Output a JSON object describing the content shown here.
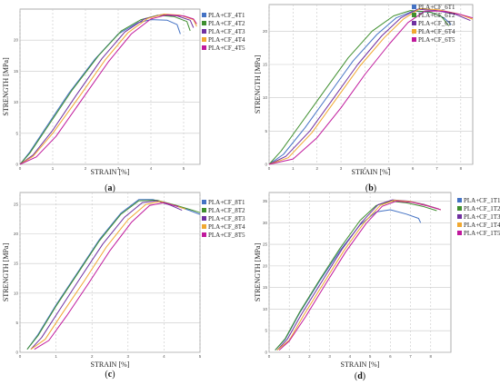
{
  "chart_data": [
    {
      "type": "line",
      "caption": "(a)",
      "xlabel": "STRAIN [%]",
      "ylabel": "STRENGTH [MPa]",
      "xlim": [
        0,
        5.5
      ],
      "ylim": [
        0,
        25
      ],
      "xticks": [
        "0",
        "1",
        "2",
        "3",
        "4",
        "5"
      ],
      "yticks": [
        "0",
        "5",
        "10",
        "15",
        "20"
      ],
      "series": [
        {
          "name": "PLA+CF_4T1",
          "color": "#4472c4",
          "x": [
            0,
            0.3,
            0.8,
            1.5,
            2.3,
            3.0,
            3.6,
            4.0,
            4.5,
            4.8,
            4.9
          ],
          "y": [
            0,
            2.0,
            6.0,
            11.5,
            17.0,
            21.0,
            22.8,
            23.3,
            23.2,
            22.5,
            21.0
          ]
        },
        {
          "name": "PLA+CF_4T2",
          "color": "#3f8f2f",
          "x": [
            0,
            0.3,
            0.9,
            1.6,
            2.4,
            3.1,
            3.7,
            4.2,
            4.7,
            5.1,
            5.2
          ],
          "y": [
            0,
            1.8,
            6.5,
            12.0,
            17.5,
            21.5,
            23.3,
            24.0,
            23.8,
            23.0,
            21.5
          ]
        },
        {
          "name": "PLA+CF_4T3",
          "color": "#7030a0",
          "x": [
            0,
            0.4,
            1.0,
            1.7,
            2.5,
            3.2,
            3.8,
            4.3,
            4.8,
            5.2,
            5.3
          ],
          "y": [
            0,
            1.5,
            5.5,
            11.0,
            17.0,
            21.3,
            23.4,
            24.1,
            23.9,
            23.2,
            22.0
          ]
        },
        {
          "name": "PLA+CF_4T4",
          "color": "#f0a830",
          "x": [
            0,
            0.4,
            1.0,
            1.8,
            2.6,
            3.3,
            3.9,
            4.4,
            4.9,
            5.3,
            5.4
          ],
          "y": [
            0,
            1.3,
            5.0,
            10.8,
            16.8,
            21.2,
            23.5,
            24.2,
            24.0,
            23.3,
            22.2
          ]
        },
        {
          "name": "PLA+CF_4T5",
          "color": "#c0189c",
          "x": [
            0,
            0.5,
            1.1,
            1.9,
            2.7,
            3.4,
            4.0,
            4.5,
            5.0,
            5.3,
            5.4
          ],
          "y": [
            0,
            1.2,
            4.5,
            10.5,
            16.5,
            21.0,
            23.4,
            24.1,
            23.9,
            23.4,
            22.6
          ]
        }
      ]
    },
    {
      "type": "line",
      "caption": "(b)",
      "xlabel": "STRAIN [%]",
      "ylabel": "STRENGTH [MPa]",
      "xlim": [
        0,
        8.5
      ],
      "ylim": [
        0,
        24
      ],
      "xticks": [
        "0",
        "1",
        "2",
        "3",
        "4",
        "5",
        "6",
        "7",
        "8"
      ],
      "yticks": [
        "0",
        "5",
        "10",
        "15",
        "20"
      ],
      "series": [
        {
          "name": "PLA+CF_6T1",
          "color": "#4472c4",
          "x": [
            0,
            0.6,
            1.5,
            2.5,
            3.5,
            4.5,
            5.3,
            6.0,
            6.8,
            7.3,
            7.6
          ],
          "y": [
            0,
            1.5,
            5.5,
            10.5,
            15.5,
            19.5,
            22.0,
            23.0,
            22.8,
            22.0,
            21.0
          ]
        },
        {
          "name": "PLA+CF_6T2",
          "color": "#3f8f2f",
          "x": [
            0,
            0.5,
            1.3,
            2.3,
            3.3,
            4.3,
            5.2,
            5.9,
            6.7,
            7.2,
            7.5
          ],
          "y": [
            0,
            2.0,
            6.0,
            11.0,
            16.0,
            20.0,
            22.3,
            23.1,
            22.9,
            22.2,
            20.8
          ]
        },
        {
          "name": "PLA+CF_6T3",
          "color": "#7030a0",
          "x": [
            0,
            0.7,
            1.7,
            2.7,
            3.7,
            4.7,
            5.5,
            6.2,
            7.0,
            7.8,
            8.4
          ],
          "y": [
            0,
            1.2,
            5.0,
            10.0,
            15.0,
            19.3,
            22.0,
            23.3,
            23.1,
            22.5,
            21.6
          ]
        },
        {
          "name": "PLA+CF_6T4",
          "color": "#f0a830",
          "x": [
            0,
            0.8,
            1.8,
            2.8,
            3.8,
            4.8,
            5.6,
            6.3,
            7.1,
            7.9,
            8.5
          ],
          "y": [
            0,
            1.0,
            4.8,
            9.8,
            14.8,
            19.0,
            21.8,
            23.4,
            23.2,
            22.6,
            21.8
          ]
        },
        {
          "name": "PLA+CF_6T5",
          "color": "#c0189c",
          "x": [
            0,
            1.0,
            2.0,
            3.0,
            4.0,
            5.0,
            5.8,
            6.5,
            7.3,
            8.0,
            8.5
          ],
          "y": [
            0,
            0.8,
            4.0,
            8.5,
            13.5,
            18.0,
            21.3,
            23.0,
            23.0,
            22.5,
            22.0
          ]
        }
      ]
    },
    {
      "type": "line",
      "caption": "(c)",
      "xlabel": "STRAIN [%]",
      "ylabel": "STRENGTH [MPa]",
      "xlim": [
        0,
        5
      ],
      "ylim": [
        0,
        27
      ],
      "xticks": [
        "0",
        "1",
        "2",
        "3",
        "4",
        "5"
      ],
      "yticks": [
        "0",
        "5",
        "10",
        "15",
        "20",
        "25"
      ],
      "series": [
        {
          "name": "PLA+CF_8T1",
          "color": "#4472c4",
          "x": [
            0.2,
            0.5,
            1.0,
            1.6,
            2.2,
            2.8,
            3.3,
            3.7,
            4.2,
            4.7,
            5.0
          ],
          "y": [
            0.5,
            3.0,
            8.0,
            13.5,
            19.0,
            23.5,
            25.8,
            25.8,
            25.0,
            24.0,
            23.3
          ]
        },
        {
          "name": "PLA+CF_8T2",
          "color": "#3f8f2f",
          "x": [
            0.2,
            0.5,
            1.0,
            1.6,
            2.2,
            2.8,
            3.3,
            3.8,
            4.3,
            4.8,
            5.0
          ],
          "y": [
            0.5,
            2.8,
            7.8,
            13.3,
            18.8,
            23.3,
            25.6,
            25.7,
            24.9,
            24.0,
            23.6
          ]
        },
        {
          "name": "PLA+CF_8T3",
          "color": "#7030a0",
          "x": [
            0.3,
            0.6,
            1.1,
            1.7,
            2.3,
            2.9,
            3.4,
            3.8,
            4.2,
            4.5
          ],
          "y": [
            0.5,
            2.5,
            7.2,
            12.8,
            18.3,
            22.8,
            25.3,
            25.6,
            24.8,
            24.0
          ]
        },
        {
          "name": "PLA+CF_8T4",
          "color": "#f0a830",
          "x": [
            0.3,
            0.7,
            1.2,
            1.8,
            2.4,
            3.0,
            3.5,
            3.9,
            4.3,
            4.6
          ],
          "y": [
            0.5,
            2.2,
            6.8,
            12.2,
            17.8,
            22.4,
            25.0,
            25.5,
            24.8,
            24.2
          ]
        },
        {
          "name": "PLA+CF_8T5",
          "color": "#c0189c",
          "x": [
            0.4,
            0.8,
            1.3,
            1.9,
            2.5,
            3.1,
            3.6,
            4.0,
            4.4
          ],
          "y": [
            0.5,
            2.0,
            6.2,
            11.6,
            17.2,
            22.0,
            24.8,
            25.3,
            24.6
          ]
        }
      ]
    },
    {
      "type": "line",
      "caption": "(d)",
      "xlabel": "STRAIN [%]",
      "ylabel": "STRENGTH [MPa]",
      "xlim": [
        0,
        9
      ],
      "ylim": [
        0,
        37
      ],
      "xticks": [
        "0",
        "1",
        "2",
        "3",
        "4",
        "5",
        "6",
        "7",
        "8"
      ],
      "yticks": [
        "0",
        "5",
        "10",
        "15",
        "20",
        "25",
        "30",
        "35"
      ],
      "series": [
        {
          "name": "PLA+CF_1T1",
          "color": "#4472c4",
          "x": [
            0.3,
            0.8,
            1.5,
            2.5,
            3.5,
            4.5,
            5.3,
            6.0,
            6.8,
            7.4,
            7.5
          ],
          "y": [
            0.5,
            3.0,
            9.0,
            16.5,
            23.5,
            29.5,
            32.5,
            33.0,
            32.0,
            31.0,
            30.0
          ]
        },
        {
          "name": "PLA+CF_1T2",
          "color": "#3f8f2f",
          "x": [
            0.3,
            0.8,
            1.5,
            2.5,
            3.5,
            4.5,
            5.3,
            6.0,
            6.8,
            7.6,
            8.3
          ],
          "y": [
            0.5,
            3.2,
            9.2,
            16.8,
            24.0,
            30.5,
            34.0,
            35.0,
            34.6,
            33.8,
            32.8
          ]
        },
        {
          "name": "PLA+CF_1T3",
          "color": "#7030a0",
          "x": [
            0.4,
            0.9,
            1.6,
            2.6,
            3.6,
            4.6,
            5.4,
            6.1,
            6.9,
            7.7,
            8.4
          ],
          "y": [
            0.5,
            3.0,
            8.8,
            16.3,
            23.8,
            30.2,
            34.2,
            35.3,
            35.0,
            34.2,
            33.2
          ]
        },
        {
          "name": "PLA+CF_1T4",
          "color": "#f0a830",
          "x": [
            0.4,
            1.0,
            1.7,
            2.7,
            3.7,
            4.7,
            5.5,
            6.2,
            7.0,
            7.8,
            8.5
          ],
          "y": [
            0.5,
            2.8,
            8.5,
            16.0,
            23.5,
            30.0,
            34.0,
            35.2,
            34.9,
            34.0,
            33.0
          ]
        },
        {
          "name": "PLA+CF_1T5",
          "color": "#c0189c",
          "x": [
            0.5,
            1.0,
            1.8,
            2.8,
            3.8,
            4.8,
            5.6,
            6.3,
            7.1,
            7.9,
            8.5
          ],
          "y": [
            0.5,
            2.6,
            8.2,
            15.8,
            23.3,
            29.8,
            33.8,
            35.0,
            34.7,
            33.8,
            33.0
          ]
        }
      ]
    }
  ]
}
